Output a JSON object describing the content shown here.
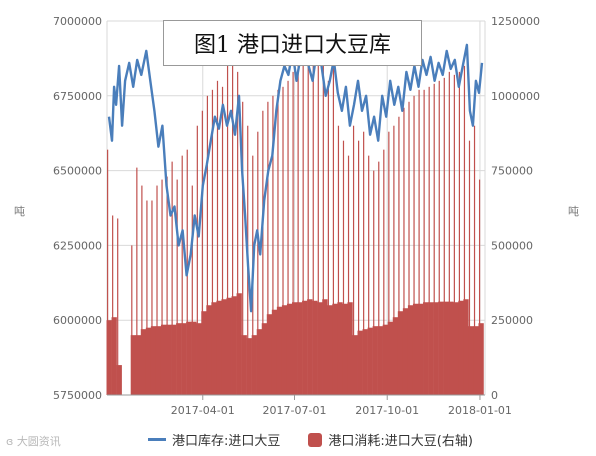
{
  "chart_data": {
    "type": "bar+line",
    "title": "图1  港口进口大豆库",
    "y_left": {
      "min": 5750000,
      "max": 7000000,
      "ticks": [
        5750000,
        6000000,
        6250000,
        6500000,
        6750000,
        7000000
      ],
      "unit": "吨"
    },
    "y_right": {
      "min": 0,
      "max": 1250000,
      "ticks": [
        0,
        250000,
        500000,
        750000,
        1000000,
        1250000
      ],
      "unit": "吨"
    },
    "x_range": [
      "2016-12-27",
      "2018-01-06"
    ],
    "x_ticks": [
      "2017-04-01",
      "2017-07-01",
      "2017-10-01",
      "2018-01-01"
    ],
    "grid": true,
    "legend_position": "bottom",
    "series": [
      {
        "name": "港口库存:进口大豆",
        "kind": "line",
        "axis": "left",
        "color": "#4a7ebb",
        "points": [
          [
            "2016-12-29",
            6680000
          ],
          [
            "2017-01-01",
            6600000
          ],
          [
            "2017-01-03",
            6780000
          ],
          [
            "2017-01-05",
            6720000
          ],
          [
            "2017-01-08",
            6850000
          ],
          [
            "2017-01-11",
            6650000
          ],
          [
            "2017-01-14",
            6800000
          ],
          [
            "2017-01-18",
            6860000
          ],
          [
            "2017-01-22",
            6780000
          ],
          [
            "2017-01-26",
            6870000
          ],
          [
            "2017-01-30",
            6820000
          ],
          [
            "2017-02-04",
            6900000
          ],
          [
            "2017-02-08",
            6800000
          ],
          [
            "2017-02-12",
            6700000
          ],
          [
            "2017-02-16",
            6580000
          ],
          [
            "2017-02-20",
            6650000
          ],
          [
            "2017-02-24",
            6450000
          ],
          [
            "2017-02-28",
            6350000
          ],
          [
            "2017-03-04",
            6380000
          ],
          [
            "2017-03-08",
            6250000
          ],
          [
            "2017-03-12",
            6300000
          ],
          [
            "2017-03-16",
            6150000
          ],
          [
            "2017-03-20",
            6220000
          ],
          [
            "2017-03-24",
            6350000
          ],
          [
            "2017-03-28",
            6280000
          ],
          [
            "2017-04-01",
            6450000
          ],
          [
            "2017-04-05",
            6520000
          ],
          [
            "2017-04-09",
            6600000
          ],
          [
            "2017-04-13",
            6680000
          ],
          [
            "2017-04-17",
            6640000
          ],
          [
            "2017-04-21",
            6720000
          ],
          [
            "2017-04-25",
            6650000
          ],
          [
            "2017-04-29",
            6700000
          ],
          [
            "2017-05-03",
            6620000
          ],
          [
            "2017-05-07",
            6750000
          ],
          [
            "2017-05-10",
            6500000
          ],
          [
            "2017-05-13",
            6350000
          ],
          [
            "2017-05-16",
            6180000
          ],
          [
            "2017-05-19",
            6030000
          ],
          [
            "2017-05-22",
            6250000
          ],
          [
            "2017-05-25",
            6300000
          ],
          [
            "2017-05-28",
            6220000
          ],
          [
            "2017-06-01",
            6400000
          ],
          [
            "2017-06-05",
            6500000
          ],
          [
            "2017-06-09",
            6550000
          ],
          [
            "2017-06-13",
            6700000
          ],
          [
            "2017-06-17",
            6800000
          ],
          [
            "2017-06-21",
            6850000
          ],
          [
            "2017-06-25",
            6820000
          ],
          [
            "2017-06-29",
            6900000
          ],
          [
            "2017-07-03",
            6800000
          ],
          [
            "2017-07-07",
            6880000
          ],
          [
            "2017-07-11",
            6920000
          ],
          [
            "2017-07-15",
            6850000
          ],
          [
            "2017-07-19",
            6800000
          ],
          [
            "2017-07-23",
            6900000
          ],
          [
            "2017-07-27",
            6870000
          ],
          [
            "2017-08-01",
            6750000
          ],
          [
            "2017-08-05",
            6800000
          ],
          [
            "2017-08-09",
            6870000
          ],
          [
            "2017-08-13",
            6760000
          ],
          [
            "2017-08-17",
            6700000
          ],
          [
            "2017-08-21",
            6780000
          ],
          [
            "2017-08-25",
            6650000
          ],
          [
            "2017-08-29",
            6720000
          ],
          [
            "2017-09-02",
            6800000
          ],
          [
            "2017-09-06",
            6700000
          ],
          [
            "2017-09-10",
            6750000
          ],
          [
            "2017-09-14",
            6620000
          ],
          [
            "2017-09-18",
            6680000
          ],
          [
            "2017-09-22",
            6600000
          ],
          [
            "2017-09-26",
            6750000
          ],
          [
            "2017-09-30",
            6680000
          ],
          [
            "2017-10-04",
            6800000
          ],
          [
            "2017-10-08",
            6720000
          ],
          [
            "2017-10-12",
            6780000
          ],
          [
            "2017-10-16",
            6700000
          ],
          [
            "2017-10-20",
            6830000
          ],
          [
            "2017-10-24",
            6770000
          ],
          [
            "2017-10-28",
            6850000
          ],
          [
            "2017-11-01",
            6780000
          ],
          [
            "2017-11-05",
            6870000
          ],
          [
            "2017-11-09",
            6820000
          ],
          [
            "2017-11-13",
            6880000
          ],
          [
            "2017-11-17",
            6800000
          ],
          [
            "2017-11-21",
            6860000
          ],
          [
            "2017-11-25",
            6820000
          ],
          [
            "2017-11-29",
            6900000
          ],
          [
            "2017-12-03",
            6840000
          ],
          [
            "2017-12-07",
            6870000
          ],
          [
            "2017-12-11",
            6780000
          ],
          [
            "2017-12-15",
            6850000
          ],
          [
            "2017-12-19",
            6920000
          ],
          [
            "2017-12-22",
            6700000
          ],
          [
            "2017-12-25",
            6650000
          ],
          [
            "2017-12-28",
            6800000
          ],
          [
            "2017-12-31",
            6760000
          ],
          [
            "2018-01-03",
            6860000
          ]
        ]
      },
      {
        "name": "港口消耗:进口大豆(右轴)",
        "kind": "bar",
        "axis": "right",
        "color": "#c0504d",
        "bars": [
          [
            "2016-12-29",
            250000,
            820000
          ],
          [
            "2017-01-03",
            260000,
            600000
          ],
          [
            "2017-01-08",
            100000,
            590000
          ],
          [
            "2017-01-22",
            200000,
            500000
          ],
          [
            "2017-01-27",
            200000,
            760000
          ],
          [
            "2017-02-01",
            220000,
            700000
          ],
          [
            "2017-02-06",
            225000,
            650000
          ],
          [
            "2017-02-11",
            230000,
            650000
          ],
          [
            "2017-02-16",
            230000,
            700000
          ],
          [
            "2017-02-21",
            235000,
            720000
          ],
          [
            "2017-02-26",
            235000,
            730000
          ],
          [
            "2017-03-03",
            235000,
            780000
          ],
          [
            "2017-03-08",
            240000,
            720000
          ],
          [
            "2017-03-13",
            240000,
            800000
          ],
          [
            "2017-03-18",
            245000,
            820000
          ],
          [
            "2017-03-23",
            245000,
            700000
          ],
          [
            "2017-03-28",
            240000,
            900000
          ],
          [
            "2017-04-02",
            280000,
            950000
          ],
          [
            "2017-04-07",
            300000,
            1000000
          ],
          [
            "2017-04-12",
            310000,
            1020000
          ],
          [
            "2017-04-17",
            315000,
            1050000
          ],
          [
            "2017-04-22",
            320000,
            1030000
          ],
          [
            "2017-04-27",
            325000,
            1150000
          ],
          [
            "2017-05-02",
            330000,
            1100000
          ],
          [
            "2017-05-07",
            340000,
            1080000
          ],
          [
            "2017-05-12",
            200000,
            980000
          ],
          [
            "2017-05-17",
            190000,
            900000
          ],
          [
            "2017-05-22",
            200000,
            800000
          ],
          [
            "2017-05-27",
            220000,
            880000
          ],
          [
            "2017-06-01",
            240000,
            950000
          ],
          [
            "2017-06-06",
            270000,
            980000
          ],
          [
            "2017-06-11",
            285000,
            1000000
          ],
          [
            "2017-06-16",
            295000,
            1020000
          ],
          [
            "2017-06-21",
            300000,
            1030000
          ],
          [
            "2017-06-26",
            305000,
            1050000
          ],
          [
            "2017-07-01",
            310000,
            1080000
          ],
          [
            "2017-07-06",
            310000,
            1100000
          ],
          [
            "2017-07-11",
            315000,
            1120000
          ],
          [
            "2017-07-16",
            320000,
            1100000
          ],
          [
            "2017-07-21",
            315000,
            1120000
          ],
          [
            "2017-07-26",
            310000,
            1150000
          ],
          [
            "2017-07-31",
            320000,
            1120000
          ],
          [
            "2017-08-05",
            300000,
            1050000
          ],
          [
            "2017-08-10",
            305000,
            1100000
          ],
          [
            "2017-08-15",
            310000,
            900000
          ],
          [
            "2017-08-20",
            305000,
            850000
          ],
          [
            "2017-08-25",
            310000,
            800000
          ],
          [
            "2017-08-30",
            200000,
            900000
          ],
          [
            "2017-09-04",
            215000,
            850000
          ],
          [
            "2017-09-09",
            220000,
            880000
          ],
          [
            "2017-09-14",
            225000,
            800000
          ],
          [
            "2017-09-19",
            230000,
            750000
          ],
          [
            "2017-09-24",
            230000,
            780000
          ],
          [
            "2017-09-29",
            235000,
            820000
          ],
          [
            "2017-10-04",
            245000,
            880000
          ],
          [
            "2017-10-09",
            260000,
            900000
          ],
          [
            "2017-10-14",
            280000,
            930000
          ],
          [
            "2017-10-19",
            290000,
            960000
          ],
          [
            "2017-10-24",
            300000,
            980000
          ],
          [
            "2017-10-29",
            305000,
            1000000
          ],
          [
            "2017-11-03",
            305000,
            1020000
          ],
          [
            "2017-11-08",
            310000,
            1020000
          ],
          [
            "2017-11-13",
            310000,
            1030000
          ],
          [
            "2017-11-18",
            310000,
            1040000
          ],
          [
            "2017-11-23",
            312000,
            1050000
          ],
          [
            "2017-11-28",
            312000,
            1060000
          ],
          [
            "2017-12-03",
            312000,
            1080000
          ],
          [
            "2017-12-08",
            310000,
            1070000
          ],
          [
            "2017-12-13",
            315000,
            1080000
          ],
          [
            "2017-12-18",
            320000,
            1100000
          ],
          [
            "2017-12-23",
            230000,
            850000
          ],
          [
            "2017-12-28",
            230000,
            900000
          ],
          [
            "2018-01-02",
            240000,
            720000
          ]
        ]
      }
    ]
  },
  "watermark": "大圆资讯"
}
